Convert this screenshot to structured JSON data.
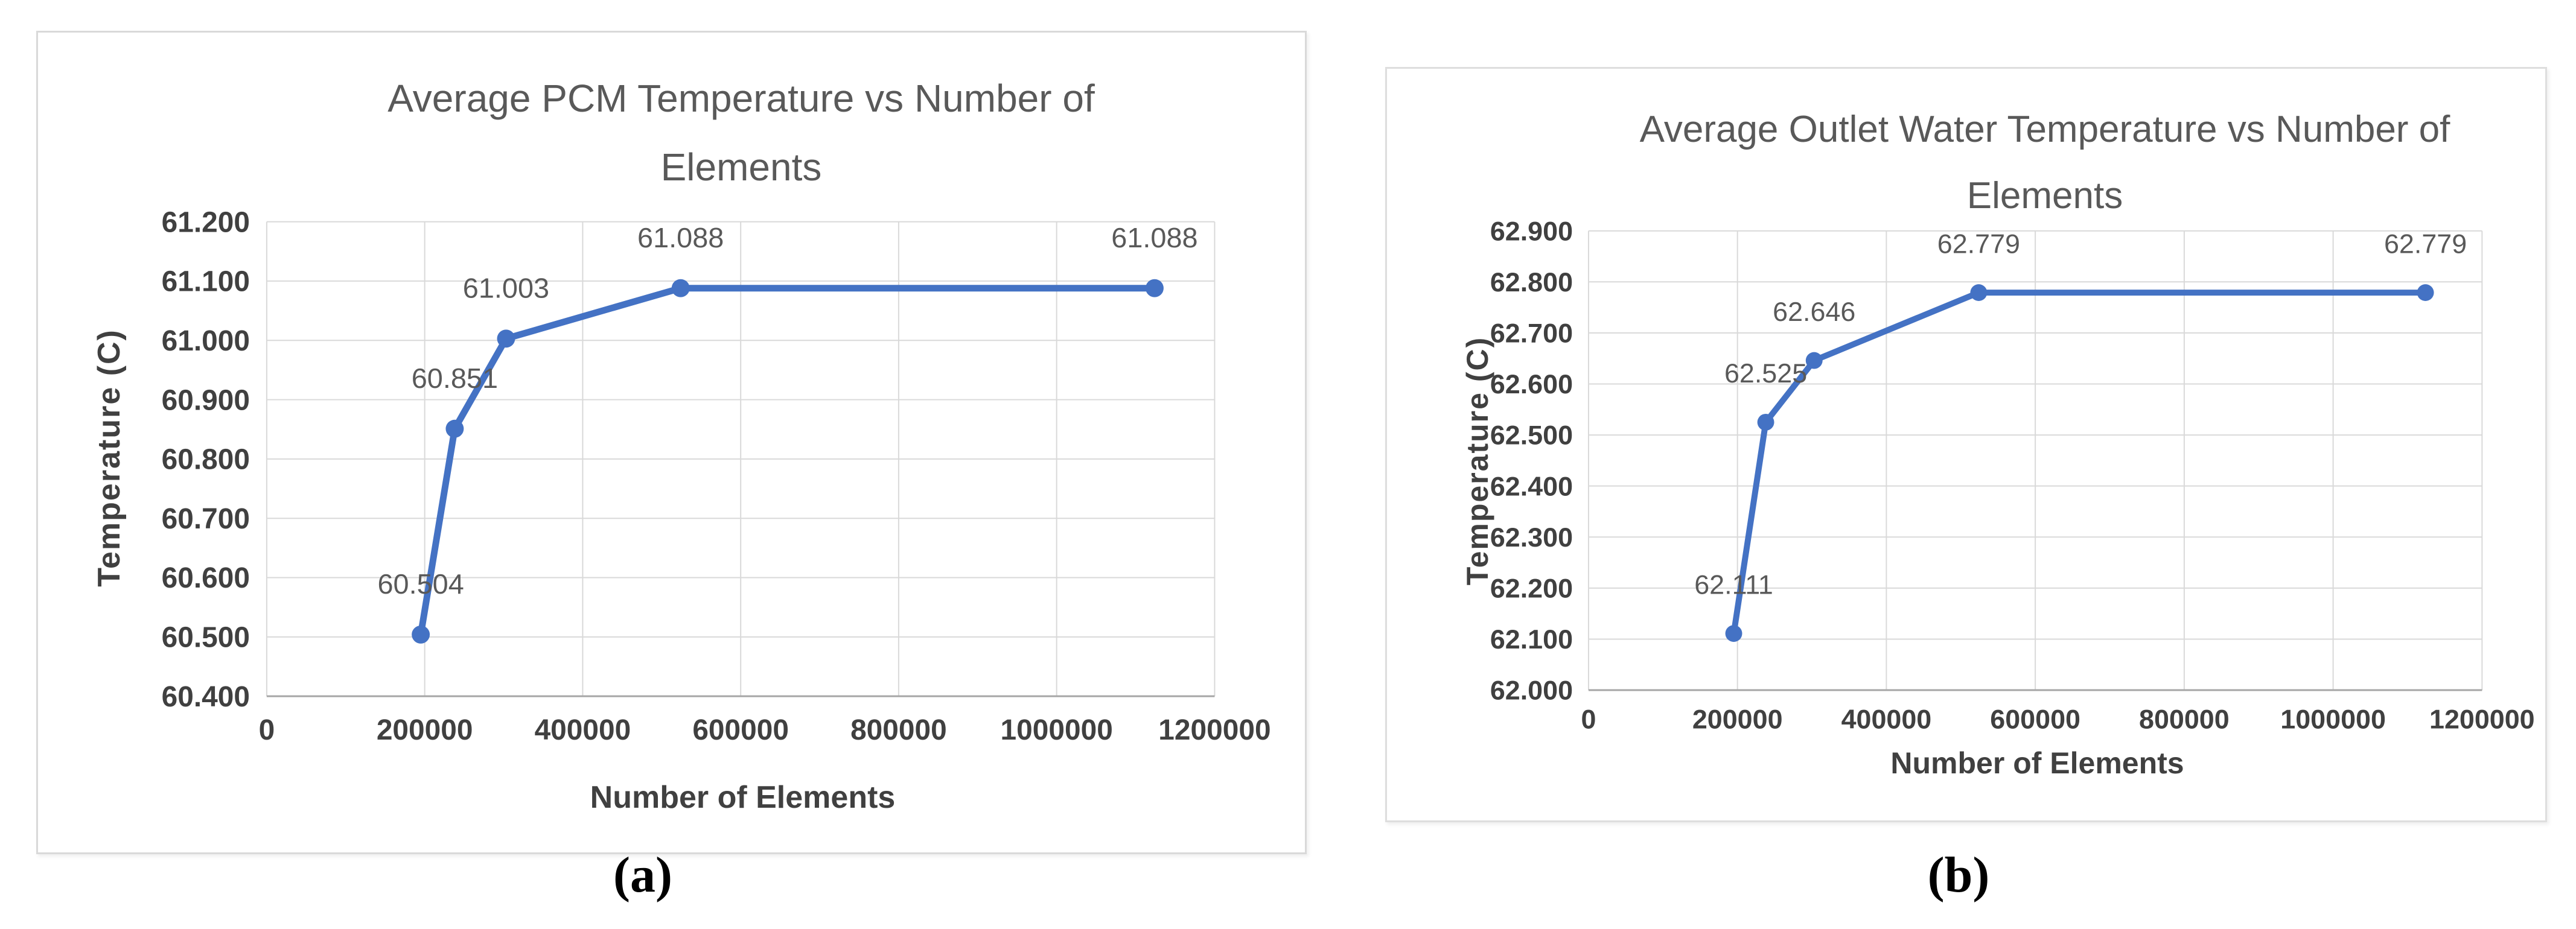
{
  "figure": {
    "background": "#FFFFFF"
  },
  "colors": {
    "series_line": "#4472C4",
    "gridline": "#D9D9D9",
    "axis_line": "#A6A6A6",
    "tick_label_text": "#404040",
    "title_text": "#595959",
    "panel_border": "#D9D9D9",
    "caption_text": "#000000"
  },
  "chart_data": [
    {
      "id": "a",
      "type": "line",
      "caption": "(a)",
      "title": "Average PCM Temperature vs Number of Elements",
      "title_lines": [
        "Average PCM Temperature vs Number of",
        "Elements"
      ],
      "xlabel": "Number of Elements",
      "ylabel": "Temperature (C)",
      "xlim": [
        0,
        1200000
      ],
      "ylim": [
        60.4,
        61.2
      ],
      "x_tick_labels": [
        "0",
        "200000",
        "400000",
        "600000",
        "800000",
        "1000000",
        "1200000"
      ],
      "y_tick_labels": [
        "61.200",
        "61.100",
        "61.000",
        "60.900",
        "60.800",
        "60.700",
        "60.600",
        "60.500",
        "60.400"
      ],
      "grid": true,
      "legend_position": "none",
      "series": [
        {
          "color": "#4472C4",
          "x": [
            195000,
            238000,
            303000,
            524000,
            1124000
          ],
          "y": [
            60.504,
            60.851,
            61.003,
            61.088,
            61.088
          ],
          "data_labels": [
            "60.504",
            "60.851",
            "61.003",
            "61.088",
            "61.088"
          ]
        }
      ]
    },
    {
      "id": "b",
      "type": "line",
      "caption": "(b)",
      "title": "Average Outlet Water Temperature vs Number of Elements",
      "title_lines": [
        "Average Outlet Water Temperature vs Number of",
        "Elements"
      ],
      "xlabel": "Number of Elements",
      "ylabel": "Temperature (C)",
      "xlim": [
        0,
        1200000
      ],
      "ylim": [
        62.0,
        62.9
      ],
      "x_tick_labels": [
        "0",
        "200000",
        "400000",
        "600000",
        "800000",
        "1000000",
        "1200000"
      ],
      "y_tick_labels": [
        "62.900",
        "62.800",
        "62.700",
        "62.600",
        "62.500",
        "62.400",
        "62.300",
        "62.200",
        "62.100",
        "62.000"
      ],
      "grid": true,
      "legend_position": "none",
      "series": [
        {
          "color": "#4472C4",
          "x": [
            195000,
            238000,
            303000,
            524000,
            1124000
          ],
          "y": [
            62.111,
            62.525,
            62.646,
            62.779,
            62.779
          ],
          "data_labels": [
            "62.111",
            "62.525",
            "62.646",
            "62.779",
            "62.779"
          ]
        }
      ]
    }
  ]
}
